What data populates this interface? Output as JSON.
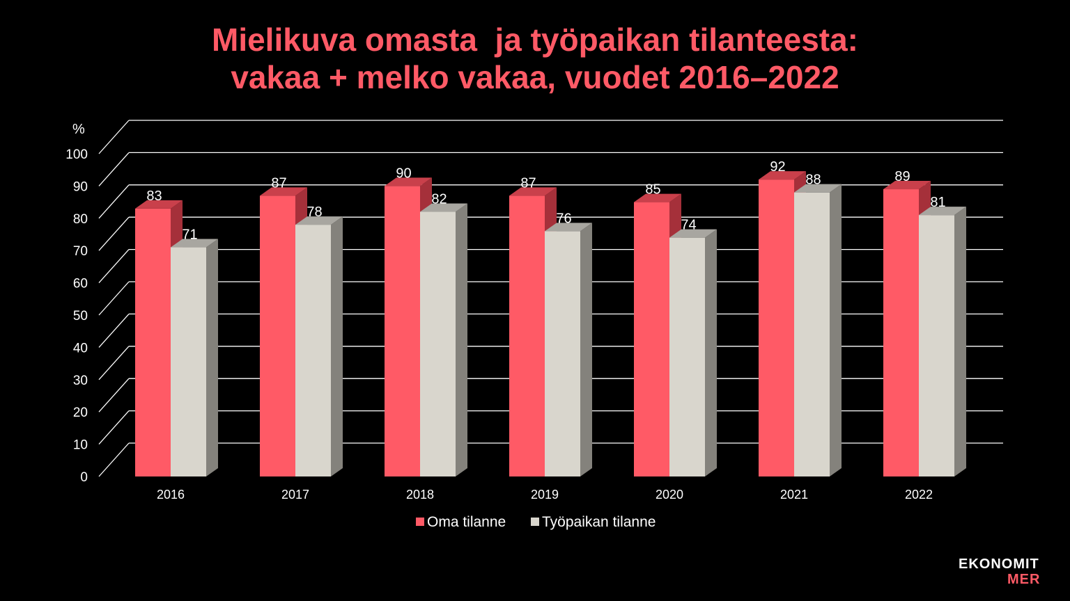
{
  "title_line1": "Mielikuva omasta  ja työpaikan tilanteesta:",
  "title_line2": "vakaa + melko vakaa, vuodet 2016–2022",
  "logo": {
    "line1": "EKONOMIT",
    "line2": "MER"
  },
  "colors": {
    "oma": "#ff5a66",
    "tyopaikka": "#d9d6cd",
    "title": "#ff5a66",
    "background": "#000000"
  },
  "chart_data": {
    "type": "bar",
    "unit_label": "%",
    "categories": [
      "2016",
      "2017",
      "2018",
      "2019",
      "2020",
      "2021",
      "2022"
    ],
    "series": [
      {
        "name": "Oma tilanne",
        "values": [
          83,
          87,
          90,
          87,
          85,
          92,
          89
        ]
      },
      {
        "name": "Työpaikan tilanne",
        "values": [
          71,
          78,
          82,
          76,
          74,
          88,
          81
        ]
      }
    ],
    "ylim": [
      0,
      100
    ],
    "yticks": [
      0,
      10,
      20,
      30,
      40,
      50,
      60,
      70,
      80,
      90,
      100
    ],
    "grid": true,
    "legend": "bottom",
    "style": "3d"
  }
}
